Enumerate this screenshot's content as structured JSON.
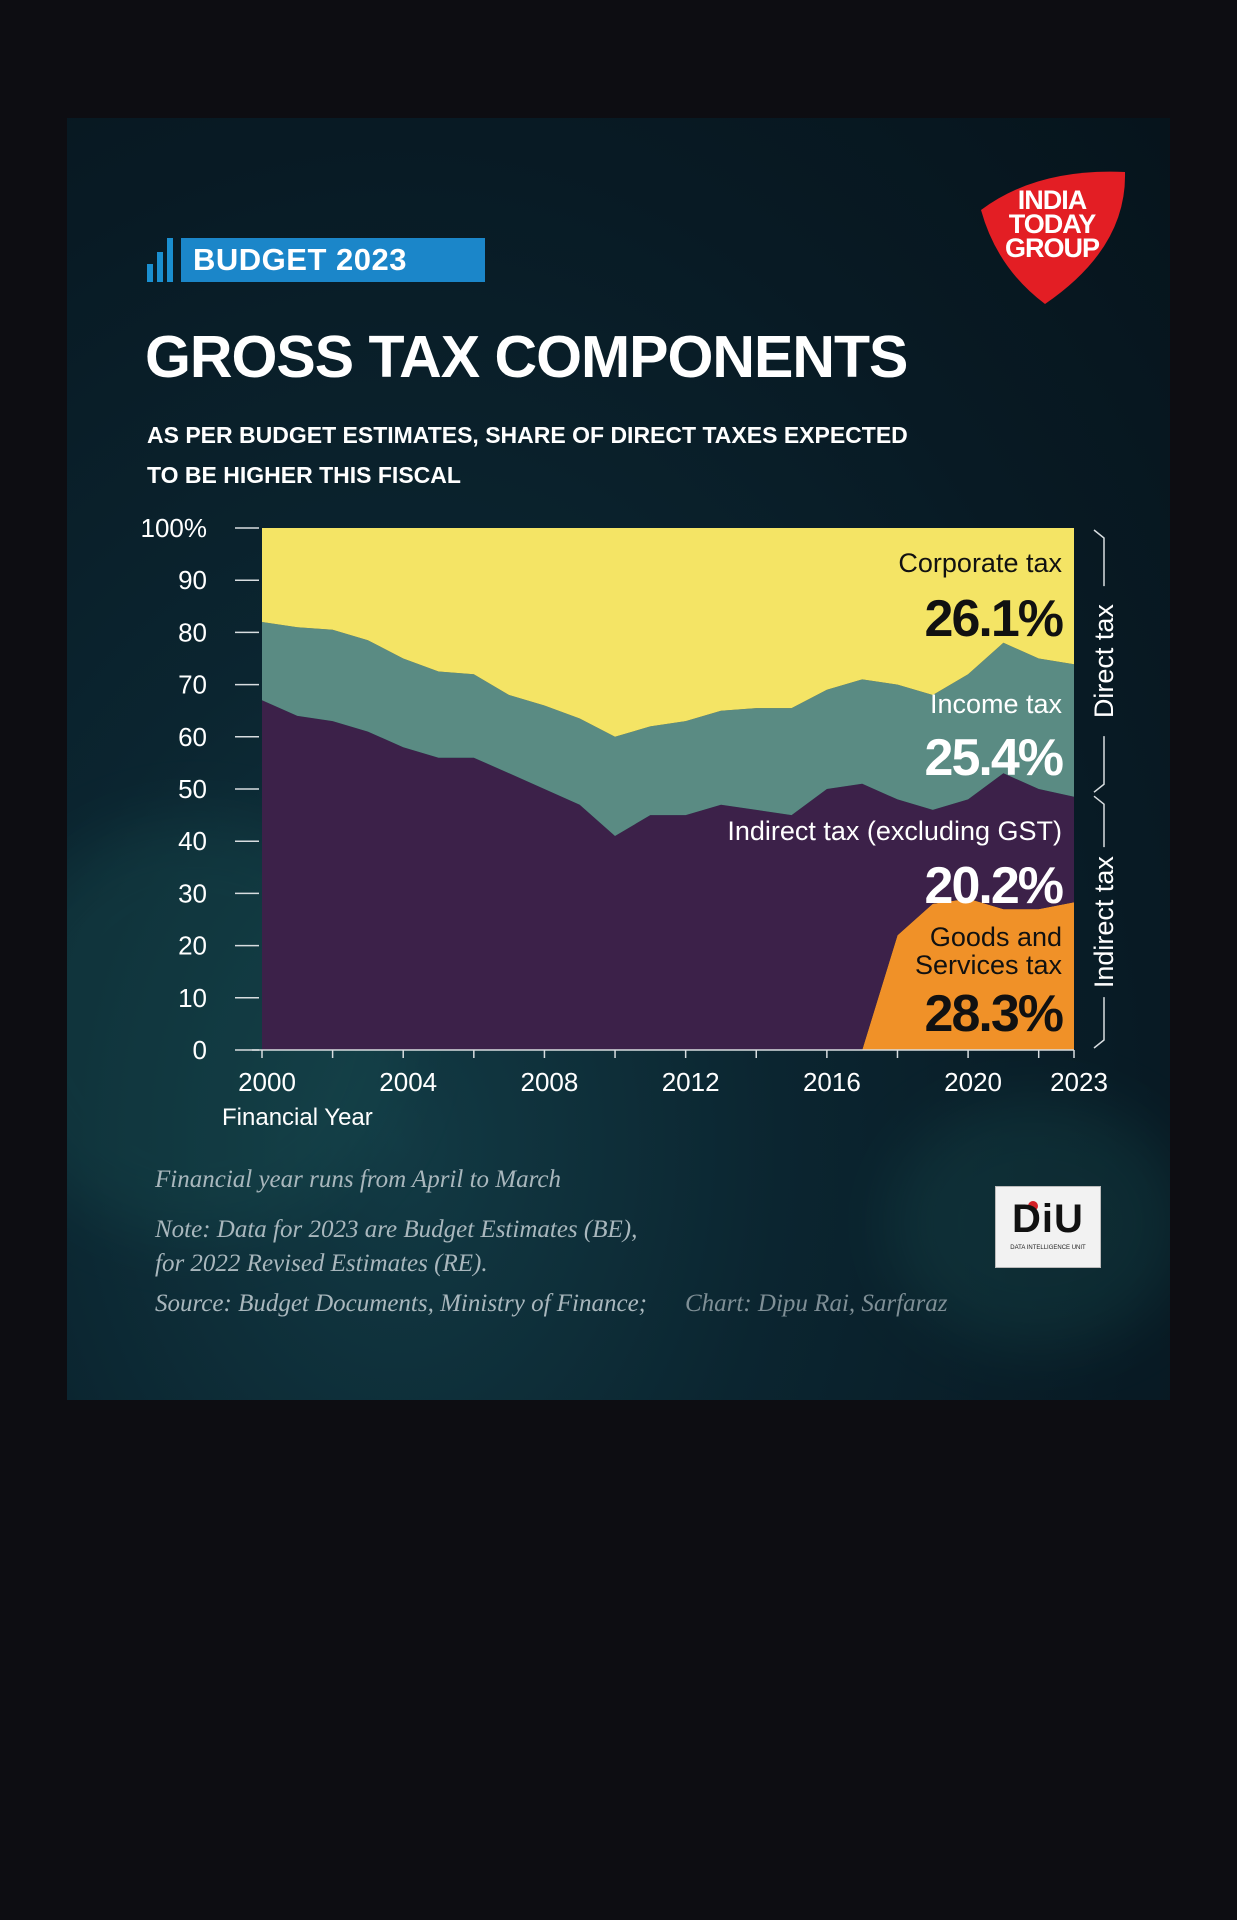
{
  "badge": {
    "label": "BUDGET 2023"
  },
  "title": "GROSS TAX COMPONENTS",
  "subtitle": "AS PER BUDGET ESTIMATES, SHARE OF DIRECT TAXES EXPECTED TO BE HIGHER THIS FISCAL",
  "logo": {
    "line1": "INDIA",
    "line2": "TODAY",
    "line3": "GROUP"
  },
  "colors": {
    "corporate": "#f4e465",
    "income": "#5a8b83",
    "indirect": "#3c2149",
    "gst": "#f09128",
    "badge": "#1b86c9",
    "logo": "#e31e24"
  },
  "chart_data": {
    "type": "area",
    "stacked": true,
    "title": "GROSS TAX COMPONENTS",
    "xlabel": "Financial Year",
    "ylabel": "",
    "ylim": [
      0,
      100
    ],
    "y_ticks": [
      "100%",
      "90",
      "80",
      "70",
      "60",
      "50",
      "40",
      "30",
      "20",
      "10",
      "0"
    ],
    "x_ticks": [
      "2000",
      "2004",
      "2008",
      "2012",
      "2016",
      "2020",
      "2023"
    ],
    "x_tick_values": [
      2000,
      2004,
      2008,
      2012,
      2016,
      2020,
      2023
    ],
    "x": [
      2000,
      2001,
      2002,
      2003,
      2004,
      2005,
      2006,
      2007,
      2008,
      2009,
      2010,
      2011,
      2012,
      2013,
      2014,
      2015,
      2016,
      2017,
      2018,
      2019,
      2020,
      2021,
      2022,
      2023
    ],
    "series": [
      {
        "name": "Goods and Services tax",
        "key": "gst",
        "values": [
          0,
          0,
          0,
          0,
          0,
          0,
          0,
          0,
          0,
          0,
          0,
          0,
          0,
          0,
          0,
          0,
          0,
          0,
          22,
          28,
          29,
          27,
          27,
          28.3
        ]
      },
      {
        "name": "Indirect tax (excluding GST)",
        "key": "indirect",
        "values": [
          67,
          64,
          63,
          61,
          58,
          56,
          56,
          53,
          50,
          47,
          41,
          45,
          45,
          47,
          46,
          45,
          50,
          51,
          26,
          18,
          19,
          26,
          23,
          20.2
        ]
      },
      {
        "name": "Income tax",
        "key": "income",
        "values": [
          15,
          17,
          17.5,
          17.5,
          17,
          16.5,
          16,
          15,
          16,
          16.5,
          19,
          17,
          18,
          18,
          19.5,
          20.5,
          19,
          20,
          22,
          22,
          24,
          25,
          25,
          25.4
        ]
      },
      {
        "name": "Corporate tax",
        "key": "corporate",
        "values": [
          18,
          19,
          19.5,
          21.5,
          25,
          27.5,
          28,
          32,
          34,
          36.5,
          40,
          38,
          37,
          35,
          34.5,
          34.5,
          31,
          29,
          30,
          32,
          28,
          22,
          25,
          26.1
        ]
      }
    ],
    "annotations": [
      {
        "key": "corporate",
        "label": "Corporate tax",
        "value": "26.1%"
      },
      {
        "key": "income",
        "label": "Income tax",
        "value": "25.4%"
      },
      {
        "key": "indirect",
        "label": "Indirect tax (excluding GST)",
        "value": "20.2%"
      },
      {
        "key": "gst",
        "label": "Goods and Services tax",
        "label_line1": "Goods and",
        "label_line2": "Services tax",
        "value": "28.3%"
      }
    ],
    "brackets": [
      {
        "label": "Direct tax",
        "from": 49,
        "to": 100
      },
      {
        "label": "Indirect tax",
        "from": 0,
        "to": 49
      }
    ]
  },
  "notes": {
    "line1": "Financial year runs from April to March",
    "line2": "Note: Data for 2023 are Budget Estimates (BE),",
    "line3": "for 2022 Revised Estimates (RE).",
    "source": "Source: Budget Documents, Ministry of Finance;",
    "credit": "Chart: Dipu Rai, Sarfaraz"
  },
  "diu": {
    "mark": "DiU",
    "tagline": "DATA INTELLIGENCE UNIT"
  }
}
